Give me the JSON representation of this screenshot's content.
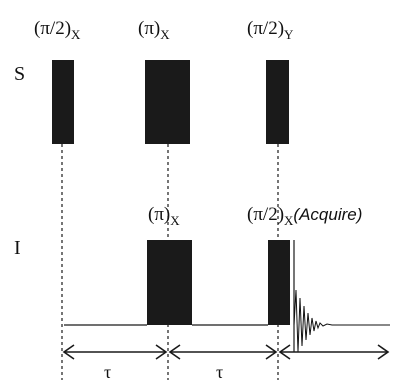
{
  "channels": {
    "s_label": "S",
    "i_label": "I"
  },
  "s_pulses": [
    {
      "angle": "(π/2)",
      "phase": "X"
    },
    {
      "angle": "(π)",
      "phase": "X"
    },
    {
      "angle": "(π/2)",
      "phase": "Y"
    }
  ],
  "i_pulses": [
    {
      "angle": "(π)",
      "phase": "X",
      "note": ""
    },
    {
      "angle": "(π/2)",
      "phase": "X",
      "note": "(Acquire)"
    }
  ],
  "delays": {
    "first": "τ",
    "second": "τ"
  }
}
